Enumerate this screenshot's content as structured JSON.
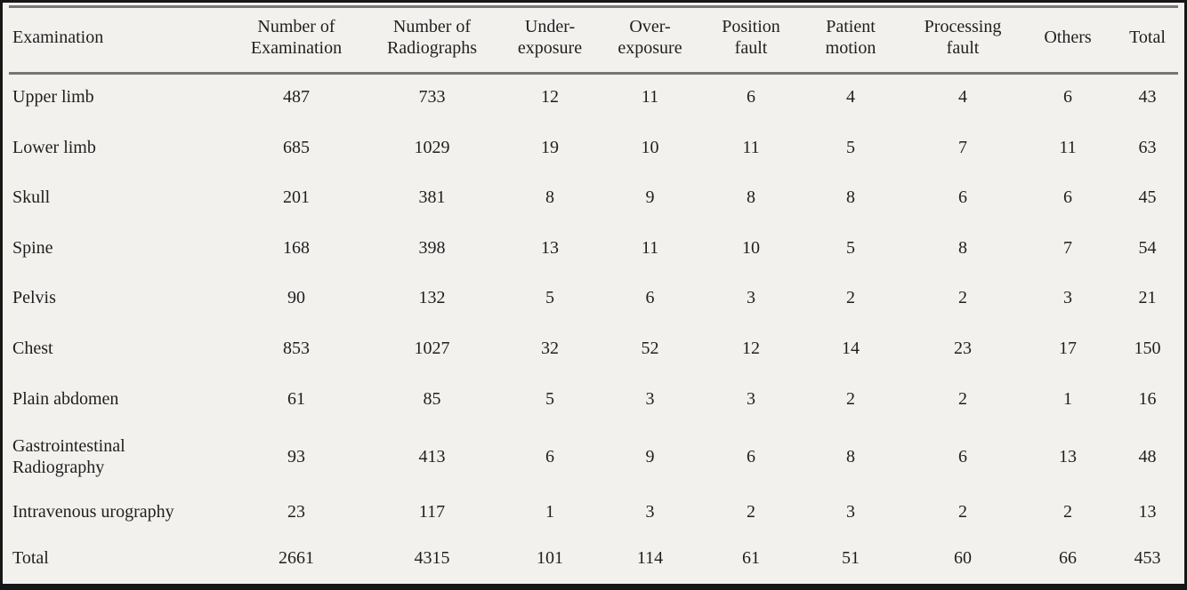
{
  "page": {
    "background_color": "#f2f1ee",
    "frame_color": "#161616",
    "rule_color": "#777674",
    "text_color": "#1f1f1f"
  },
  "table": {
    "columns": [
      {
        "label": "Examination",
        "align": "left"
      },
      {
        "label": "Number of\nExamination"
      },
      {
        "label": "Number of\nRadiographs"
      },
      {
        "label": "Under-\nexposure"
      },
      {
        "label": "Over-\nexposure"
      },
      {
        "label": "Position\nfault"
      },
      {
        "label": "Patient\nmotion"
      },
      {
        "label": "Processing\nfault"
      },
      {
        "label": "Others"
      },
      {
        "label": "Total"
      }
    ],
    "rows": [
      {
        "label": "Upper limb",
        "values": [
          "487",
          "733",
          "12",
          "11",
          "6",
          "4",
          "4",
          "6",
          "43"
        ]
      },
      {
        "label": "Lower limb",
        "values": [
          "685",
          "1029",
          "19",
          "10",
          "11",
          "5",
          "7",
          "11",
          "63"
        ]
      },
      {
        "label": "Skull",
        "values": [
          "201",
          "381",
          "8",
          "9",
          "8",
          "8",
          "6",
          "6",
          "45"
        ]
      },
      {
        "label": "Spine",
        "values": [
          "168",
          "398",
          "13",
          "11",
          "10",
          "5",
          "8",
          "7",
          "54"
        ]
      },
      {
        "label": "Pelvis",
        "values": [
          "90",
          "132",
          "5",
          "6",
          "3",
          "2",
          "2",
          "3",
          "21"
        ]
      },
      {
        "label": "Chest",
        "values": [
          "853",
          "1027",
          "32",
          "52",
          "12",
          "14",
          "23",
          "17",
          "150"
        ]
      },
      {
        "label": "Plain abdomen",
        "values": [
          "61",
          "85",
          "5",
          "3",
          "3",
          "2",
          "2",
          "1",
          "16"
        ]
      },
      {
        "label": "Gastrointestinal\nRadiography",
        "values": [
          "93",
          "413",
          "6",
          "9",
          "6",
          "8",
          "6",
          "13",
          "48"
        ],
        "tall": true
      },
      {
        "label": "Intravenous urography",
        "values": [
          "23",
          "117",
          "1",
          "3",
          "2",
          "3",
          "2",
          "2",
          "13"
        ],
        "short": true
      },
      {
        "label": "Total",
        "values": [
          "2661",
          "4315",
          "101",
          "114",
          "61",
          "51",
          "60",
          "66",
          "453"
        ],
        "is_total": true
      }
    ]
  }
}
